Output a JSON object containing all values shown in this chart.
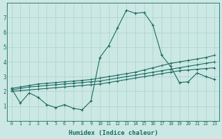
{
  "xlabel": "Humidex (Indice chaleur)",
  "background_color": "#cce8e4",
  "grid_color": "#aad0cb",
  "line_color": "#1a6b60",
  "xlim": [
    -0.5,
    23.5
  ],
  "ylim": [
    0,
    8
  ],
  "xticks": [
    0,
    1,
    2,
    3,
    4,
    5,
    6,
    7,
    8,
    9,
    10,
    11,
    12,
    13,
    14,
    15,
    16,
    17,
    18,
    19,
    20,
    21,
    22,
    23
  ],
  "yticks": [
    1,
    2,
    3,
    4,
    5,
    6,
    7
  ],
  "series1_x": [
    0,
    1,
    2,
    3,
    4,
    5,
    6,
    7,
    8,
    9,
    10,
    11,
    12,
    13,
    14,
    15,
    16,
    17,
    18,
    19,
    20,
    21,
    22,
    23
  ],
  "series1_y": [
    2.2,
    1.2,
    1.9,
    1.6,
    1.1,
    0.9,
    1.1,
    0.85,
    0.75,
    1.35,
    4.3,
    5.1,
    6.3,
    7.5,
    7.3,
    7.35,
    6.5,
    4.45,
    3.7,
    2.6,
    2.65,
    3.25,
    3.0,
    2.8
  ],
  "series2_x": [
    0,
    1,
    2,
    3,
    4,
    5,
    6,
    7,
    8,
    9,
    10,
    11,
    12,
    13,
    14,
    15,
    16,
    17,
    18,
    19,
    20,
    21,
    22,
    23
  ],
  "series2_y": [
    2.2,
    2.3,
    2.4,
    2.5,
    2.55,
    2.6,
    2.65,
    2.7,
    2.75,
    2.8,
    2.9,
    3.0,
    3.1,
    3.2,
    3.3,
    3.45,
    3.6,
    3.75,
    3.9,
    4.0,
    4.1,
    4.2,
    4.3,
    4.45
  ],
  "series3_x": [
    0,
    1,
    2,
    3,
    4,
    5,
    6,
    7,
    8,
    9,
    10,
    11,
    12,
    13,
    14,
    15,
    16,
    17,
    18,
    19,
    20,
    21,
    22,
    23
  ],
  "series3_y": [
    2.1,
    2.2,
    2.3,
    2.35,
    2.4,
    2.45,
    2.5,
    2.55,
    2.6,
    2.65,
    2.7,
    2.8,
    2.9,
    3.0,
    3.1,
    3.2,
    3.3,
    3.4,
    3.5,
    3.6,
    3.7,
    3.8,
    3.9,
    4.0
  ],
  "series4_x": [
    0,
    1,
    2,
    3,
    4,
    5,
    6,
    7,
    8,
    9,
    10,
    11,
    12,
    13,
    14,
    15,
    16,
    17,
    18,
    19,
    20,
    21,
    22,
    23
  ],
  "series4_y": [
    2.0,
    2.05,
    2.1,
    2.15,
    2.2,
    2.25,
    2.3,
    2.35,
    2.4,
    2.45,
    2.5,
    2.6,
    2.7,
    2.8,
    2.9,
    3.0,
    3.1,
    3.2,
    3.3,
    3.4,
    3.45,
    3.5,
    3.55,
    3.6
  ]
}
